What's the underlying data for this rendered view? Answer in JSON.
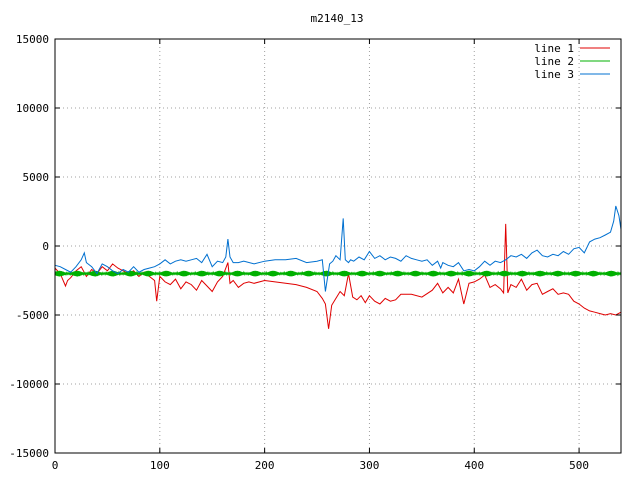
{
  "chart_data": {
    "type": "line",
    "title": "m2140_13",
    "xlim": [
      0,
      540
    ],
    "ylim": [
      -15000,
      15000
    ],
    "xticks": [
      0,
      100,
      200,
      300,
      400,
      500
    ],
    "yticks": [
      -15000,
      -10000,
      -5000,
      0,
      5000,
      10000,
      15000
    ],
    "grid": true,
    "legend_position": "top-right",
    "series": [
      {
        "name": "line 1",
        "color": "#e00000",
        "x": [
          0,
          5,
          10,
          12,
          15,
          20,
          25,
          30,
          35,
          40,
          45,
          50,
          55,
          60,
          65,
          70,
          75,
          80,
          85,
          90,
          95,
          97,
          100,
          105,
          110,
          115,
          120,
          125,
          130,
          135,
          140,
          145,
          150,
          155,
          160,
          165,
          167,
          170,
          175,
          180,
          185,
          190,
          200,
          210,
          220,
          230,
          240,
          250,
          255,
          258,
          261,
          264,
          268,
          272,
          276,
          280,
          284,
          288,
          292,
          296,
          300,
          305,
          310,
          315,
          320,
          325,
          330,
          340,
          350,
          360,
          365,
          370,
          375,
          380,
          385,
          390,
          395,
          400,
          405,
          410,
          415,
          420,
          425,
          428,
          430,
          432,
          435,
          440,
          445,
          450,
          455,
          460,
          465,
          470,
          475,
          480,
          485,
          490,
          495,
          500,
          505,
          510,
          515,
          520,
          525,
          530,
          535,
          540
        ],
        "y": [
          -1600,
          -2000,
          -2900,
          -2500,
          -2300,
          -1800,
          -1500,
          -2200,
          -1700,
          -2000,
          -1500,
          -1800,
          -1300,
          -1600,
          -1800,
          -2000,
          -1800,
          -2200,
          -1900,
          -2200,
          -2500,
          -4000,
          -2200,
          -2600,
          -2800,
          -2400,
          -3100,
          -2600,
          -2800,
          -3200,
          -2500,
          -2900,
          -3300,
          -2600,
          -2200,
          -1200,
          -2700,
          -2500,
          -3000,
          -2700,
          -2600,
          -2700,
          -2500,
          -2600,
          -2700,
          -2800,
          -3000,
          -3300,
          -3800,
          -4200,
          -6000,
          -4300,
          -3800,
          -3300,
          -3600,
          -2000,
          -3700,
          -3900,
          -3600,
          -4100,
          -3600,
          -4000,
          -4200,
          -3800,
          -4000,
          -3900,
          -3500,
          -3500,
          -3700,
          -3200,
          -2700,
          -3400,
          -3000,
          -3400,
          -2400,
          -4200,
          -2700,
          -2600,
          -2400,
          -2100,
          -3000,
          -2800,
          -3100,
          -3400,
          1600,
          -3400,
          -2800,
          -3000,
          -2400,
          -3200,
          -2800,
          -2700,
          -3500,
          -3300,
          -3100,
          -3500,
          -3400,
          -3500,
          -4000,
          -4200,
          -4500,
          -4700,
          -4800,
          -4900,
          -5000,
          -4900,
          -5000,
          -4800
        ]
      },
      {
        "name": "line 2",
        "color": "#00b000",
        "x": [
          0,
          540
        ],
        "y": [
          -2000,
          -2000
        ],
        "noise": 200
      },
      {
        "name": "line 3",
        "color": "#0070d0",
        "x": [
          0,
          5,
          10,
          15,
          20,
          25,
          28,
          30,
          35,
          40,
          45,
          50,
          55,
          60,
          65,
          70,
          75,
          80,
          85,
          90,
          95,
          100,
          105,
          110,
          115,
          120,
          125,
          130,
          135,
          140,
          145,
          150,
          155,
          160,
          163,
          165,
          167,
          170,
          175,
          180,
          190,
          200,
          210,
          220,
          230,
          240,
          250,
          255,
          258,
          262,
          265,
          268,
          272,
          275,
          277,
          280,
          282,
          285,
          290,
          295,
          300,
          305,
          310,
          315,
          320,
          325,
          330,
          335,
          340,
          345,
          350,
          355,
          360,
          365,
          368,
          370,
          375,
          380,
          385,
          390,
          395,
          400,
          405,
          410,
          415,
          420,
          425,
          430,
          435,
          440,
          445,
          450,
          455,
          460,
          465,
          470,
          475,
          480,
          485,
          490,
          495,
          500,
          505,
          510,
          515,
          520,
          525,
          530,
          533,
          535,
          538,
          540
        ],
        "y": [
          -1400,
          -1500,
          -1700,
          -1900,
          -1500,
          -1000,
          -500,
          -1200,
          -1500,
          -2000,
          -1300,
          -1500,
          -1800,
          -2000,
          -1700,
          -1900,
          -1500,
          -1900,
          -1700,
          -1600,
          -1500,
          -1300,
          -1000,
          -1300,
          -1100,
          -1000,
          -1100,
          -1000,
          -900,
          -1200,
          -600,
          -1500,
          -1100,
          -1200,
          -800,
          500,
          -800,
          -1200,
          -1200,
          -1100,
          -1300,
          -1100,
          -1000,
          -1000,
          -900,
          -1200,
          -1100,
          -1000,
          -3300,
          -1300,
          -1100,
          -700,
          -1000,
          2000,
          -1000,
          -1200,
          -1000,
          -1100,
          -800,
          -1000,
          -400,
          -900,
          -700,
          -1000,
          -800,
          -900,
          -1100,
          -700,
          -900,
          -1000,
          -1100,
          -1000,
          -1400,
          -1100,
          -1600,
          -1200,
          -1400,
          -1500,
          -1200,
          -1800,
          -1700,
          -1800,
          -1500,
          -1100,
          -1400,
          -1100,
          -1200,
          -1000,
          -700,
          -800,
          -600,
          -900,
          -500,
          -300,
          -700,
          -800,
          -600,
          -700,
          -400,
          -600,
          -200,
          -100,
          -500,
          300,
          500,
          600,
          800,
          1000,
          1800,
          2900,
          2200,
          1200
        ]
      }
    ]
  }
}
